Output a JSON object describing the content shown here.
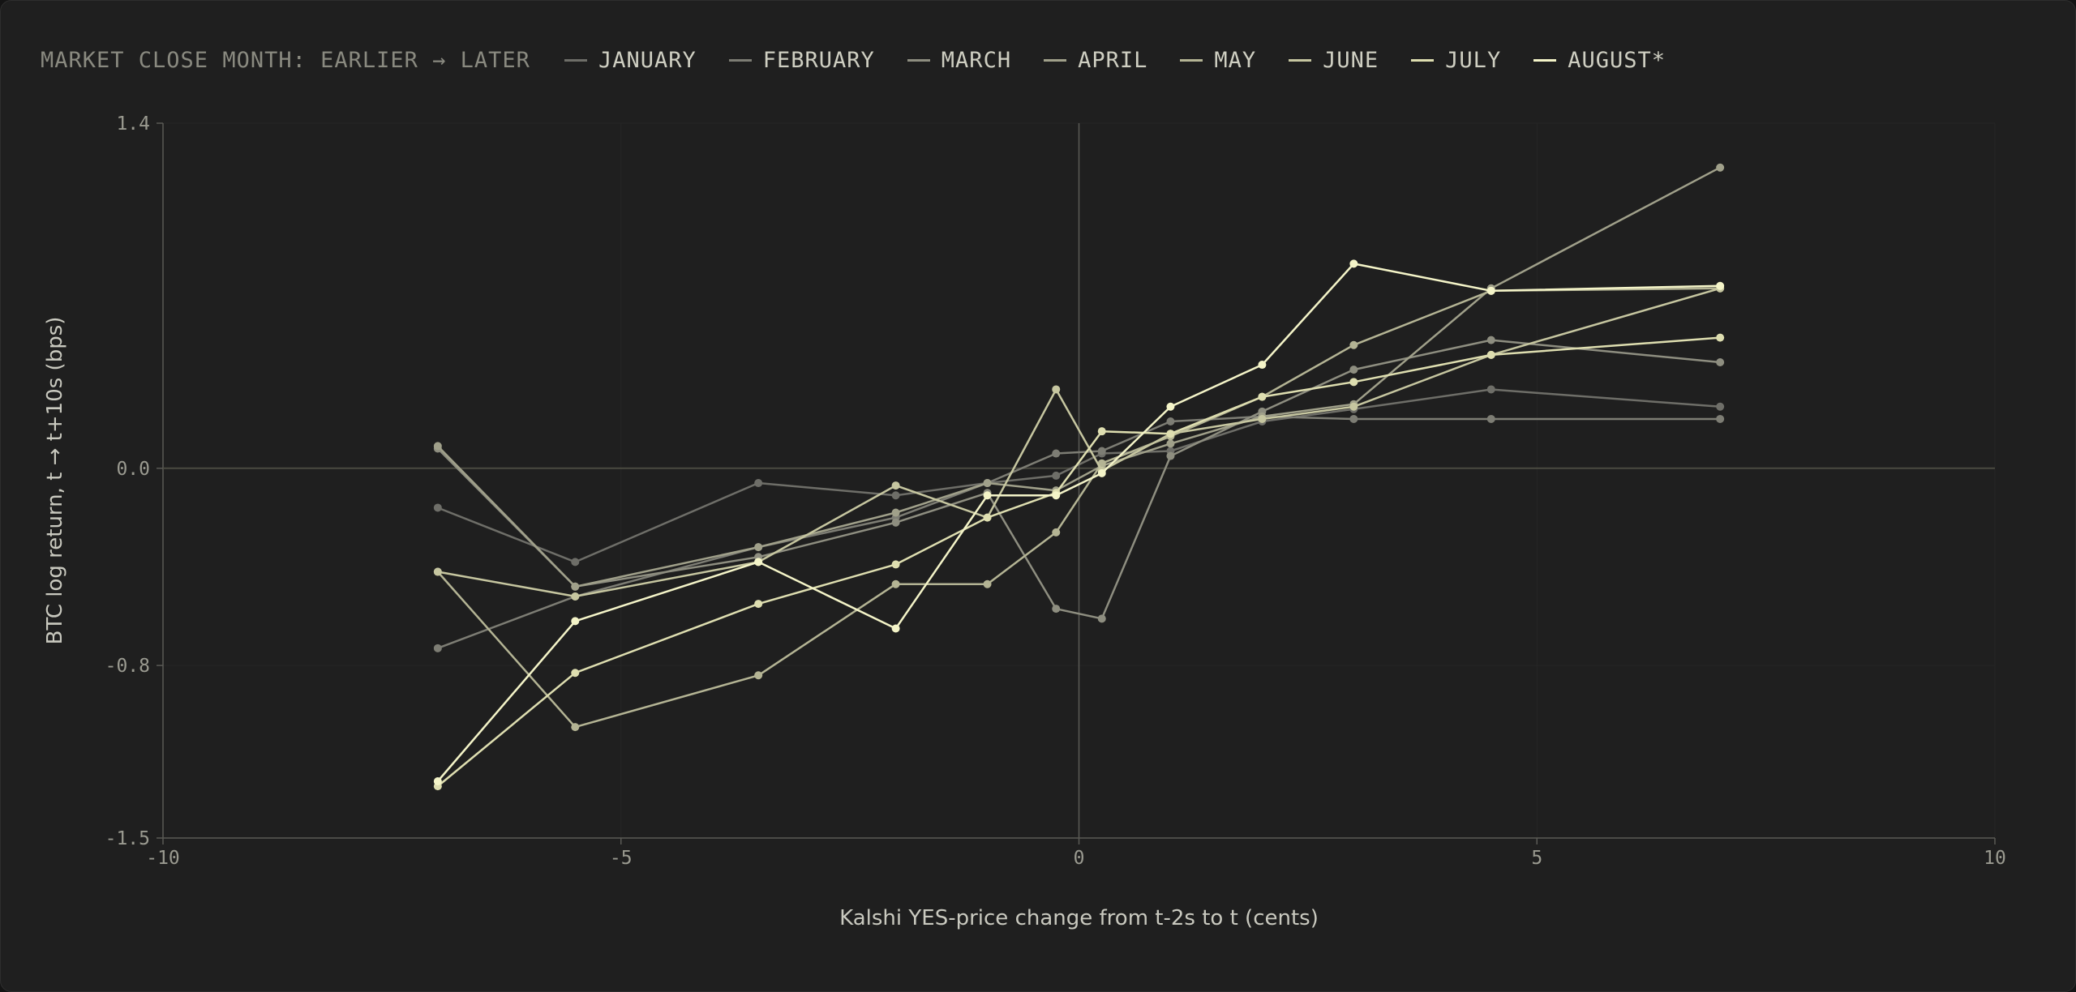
{
  "legend": {
    "title": "MARKET CLOSE MONTH: EARLIER → LATER"
  },
  "colors": {
    "background": "#1f1f1f",
    "grid": "#262626",
    "axis": "#5a5a55",
    "zero_line": "#4a4a40"
  },
  "chart_data": {
    "type": "line",
    "xlabel": "Kalshi YES-price change from t-2s to t (cents)",
    "ylabel": "BTC log return, t → t+10s (bps)",
    "xlim": [
      -10,
      10
    ],
    "ylim": [
      -1.5,
      1.4
    ],
    "xticks": [
      -10,
      -5,
      0,
      5,
      10
    ],
    "xtick_labels": [
      "-10",
      "-5",
      "0",
      "5",
      "10"
    ],
    "yticks": [
      -1.5,
      -0.8,
      0.0,
      1.4
    ],
    "ytick_labels": [
      "-1.5",
      "-0.8",
      "0.0",
      "1.4"
    ],
    "grid": true,
    "legend_position": "top",
    "series": [
      {
        "name": "JANUARY",
        "color": "#6e6e68",
        "x": [
          -7,
          -5.5,
          -3.5,
          -2,
          -1,
          -0.25,
          0.25,
          1,
          2,
          3,
          4.5,
          7
        ],
        "y": [
          -0.16,
          -0.38,
          -0.06,
          -0.11,
          -0.06,
          -0.03,
          0.06,
          0.07,
          0.19,
          0.24,
          0.32,
          0.25
        ]
      },
      {
        "name": "FEBRUARY",
        "color": "#7d7d74",
        "x": [
          -7,
          -5.5,
          -3.5,
          -2,
          -1,
          -0.25,
          0.25,
          1,
          2,
          3,
          4.5,
          7
        ],
        "y": [
          -0.73,
          -0.52,
          -0.32,
          -0.2,
          -0.06,
          0.06,
          0.07,
          0.19,
          0.21,
          0.2,
          0.2,
          0.2
        ]
      },
      {
        "name": "MARCH",
        "color": "#8e8e80",
        "x": [
          -7,
          -5.5,
          -3.5,
          -2,
          -1,
          -0.25,
          0.25,
          1,
          2,
          3,
          4.5,
          7
        ],
        "y": [
          0.08,
          -0.48,
          -0.36,
          -0.22,
          -0.1,
          -0.57,
          -0.61,
          0.05,
          0.23,
          0.4,
          0.52,
          0.43
        ]
      },
      {
        "name": "APRIL",
        "color": "#a0a08a",
        "x": [
          -7,
          -5.5,
          -3.5,
          -2,
          -1,
          -0.25,
          0.25,
          1,
          2,
          3,
          4.5,
          7
        ],
        "y": [
          0.09,
          -0.48,
          -0.32,
          -0.18,
          -0.06,
          -0.09,
          0.01,
          0.1,
          0.21,
          0.26,
          0.73,
          1.22
        ]
      },
      {
        "name": "MAY",
        "color": "#b4b494",
        "x": [
          -7,
          -5.5,
          -3.5,
          -2,
          -1,
          -0.25,
          0.25,
          1,
          2,
          3,
          4.5,
          7
        ],
        "y": [
          -0.42,
          -1.05,
          -0.84,
          -0.47,
          -0.47,
          -0.26,
          0.02,
          0.13,
          0.29,
          0.5,
          0.72,
          0.73
        ]
      },
      {
        "name": "JUNE",
        "color": "#c6c6a0",
        "x": [
          -7,
          -5.5,
          -3.5,
          -2,
          -1,
          -0.25,
          0.25,
          1,
          2,
          3,
          4.5,
          7
        ],
        "y": [
          -0.42,
          -0.52,
          -0.38,
          -0.07,
          -0.2,
          0.32,
          -0.01,
          0.14,
          0.2,
          0.25,
          0.46,
          0.73
        ]
      },
      {
        "name": "JULY",
        "color": "#dedeb0",
        "x": [
          -7,
          -5.5,
          -3.5,
          -2,
          -1,
          -0.25,
          0.25,
          1,
          2,
          3,
          4.5,
          7
        ],
        "y": [
          -1.29,
          -0.83,
          -0.55,
          -0.39,
          -0.2,
          -0.1,
          0.15,
          0.14,
          0.29,
          0.35,
          0.46,
          0.53
        ]
      },
      {
        "name": "AUGUST*",
        "color": "#f4f4c8",
        "x": [
          -7,
          -5.5,
          -3.5,
          -2,
          -1,
          -0.25,
          0.25,
          1,
          2,
          3,
          4.5,
          7
        ],
        "y": [
          -1.27,
          -0.62,
          -0.38,
          -0.65,
          -0.11,
          -0.11,
          -0.02,
          0.25,
          0.42,
          0.83,
          0.72,
          0.74
        ]
      }
    ]
  }
}
